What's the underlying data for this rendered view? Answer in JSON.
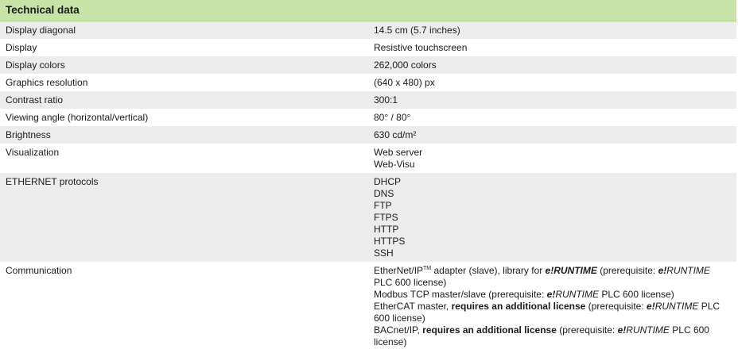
{
  "header": {
    "title": "Technical data"
  },
  "table": {
    "rows": [
      {
        "label": "Display diagonal",
        "value": [
          "14.5 cm (5.7 inches)"
        ]
      },
      {
        "label": "Display",
        "value": [
          "Resistive touchscreen"
        ]
      },
      {
        "label": "Display colors",
        "value": [
          "262,000 colors"
        ]
      },
      {
        "label": "Graphics resolution",
        "value": [
          "(640 x 480) px"
        ]
      },
      {
        "label": "Contrast ratio",
        "value": [
          "300:1"
        ]
      },
      {
        "label": "Viewing angle (horizontal/vertical)",
        "value": [
          "80° / 80°"
        ]
      },
      {
        "label": "Brightness",
        "value": [
          "630 cd/m²"
        ]
      },
      {
        "label": "Visualization",
        "value": [
          "Web server",
          "Web-Visu"
        ]
      },
      {
        "label": "ETHERNET protocols",
        "value": [
          "DHCP",
          "DNS",
          "FTP",
          "FTPS",
          "HTTP",
          "HTTPS",
          "SSH"
        ]
      },
      {
        "label": "Communication",
        "value": [
          [
            {
              "text": "EtherNet/IP",
              "style": "normal"
            },
            {
              "text": "TM",
              "style": "sup"
            },
            {
              "text": " adapter (slave), library for ",
              "style": "normal"
            },
            {
              "text": "e!RUNTIME",
              "style": "bold-italic"
            },
            {
              "text": " (prerequisite: ",
              "style": "normal"
            },
            {
              "text": "e!",
              "style": "bold-italic"
            },
            {
              "text": "RUNTIME",
              "style": "italic"
            },
            {
              "text": " PLC 600 license)",
              "style": "normal"
            }
          ],
          [
            {
              "text": "Modbus TCP master/slave (prerequisite: ",
              "style": "normal"
            },
            {
              "text": "e!",
              "style": "bold-italic"
            },
            {
              "text": "RUNTIME",
              "style": "italic"
            },
            {
              "text": " PLC 600 license)",
              "style": "normal"
            }
          ],
          [
            {
              "text": "EtherCAT master, ",
              "style": "normal"
            },
            {
              "text": "requires an additional license",
              "style": "bold"
            },
            {
              "text": " (prerequisite: ",
              "style": "normal"
            },
            {
              "text": "e!",
              "style": "bold-italic"
            },
            {
              "text": "RUNTIME",
              "style": "italic"
            },
            {
              "text": " PLC 600 license)",
              "style": "normal"
            }
          ],
          [
            {
              "text": "BACnet/IP, ",
              "style": "normal"
            },
            {
              "text": "requires an additional license",
              "style": "bold"
            },
            {
              "text": " (prerequisite: ",
              "style": "normal"
            },
            {
              "text": "e!",
              "style": "bold-italic"
            },
            {
              "text": "RUNTIME",
              "style": "italic"
            },
            {
              "text": " PLC 600 license)",
              "style": "normal"
            }
          ]
        ]
      }
    ]
  }
}
